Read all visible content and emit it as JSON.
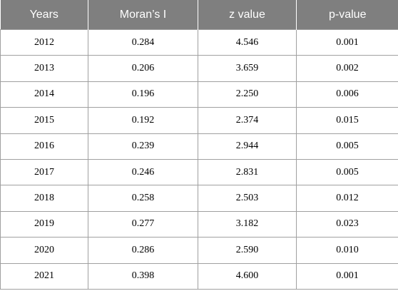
{
  "chart_data": {
    "type": "table",
    "columns": [
      "Years",
      "Moran’s I",
      "z value",
      "p-value"
    ],
    "rows": [
      [
        "2012",
        "0.284",
        "4.546",
        "0.001"
      ],
      [
        "2013",
        "0.206",
        "3.659",
        "0.002"
      ],
      [
        "2014",
        "0.196",
        "2.250",
        "0.006"
      ],
      [
        "2015",
        "0.192",
        "2.374",
        "0.015"
      ],
      [
        "2016",
        "0.239",
        "2.944",
        "0.005"
      ],
      [
        "2017",
        "0.246",
        "2.831",
        "0.005"
      ],
      [
        "2018",
        "0.258",
        "2.503",
        "0.012"
      ],
      [
        "2019",
        "0.277",
        "3.182",
        "0.023"
      ],
      [
        "2020",
        "0.286",
        "2.590",
        "0.010"
      ],
      [
        "2021",
        "0.398",
        "4.600",
        "0.001"
      ]
    ]
  },
  "colors": {
    "header_bg": "#7f7f7f",
    "header_text": "#ffffff",
    "grid": "#a0a0a0"
  }
}
